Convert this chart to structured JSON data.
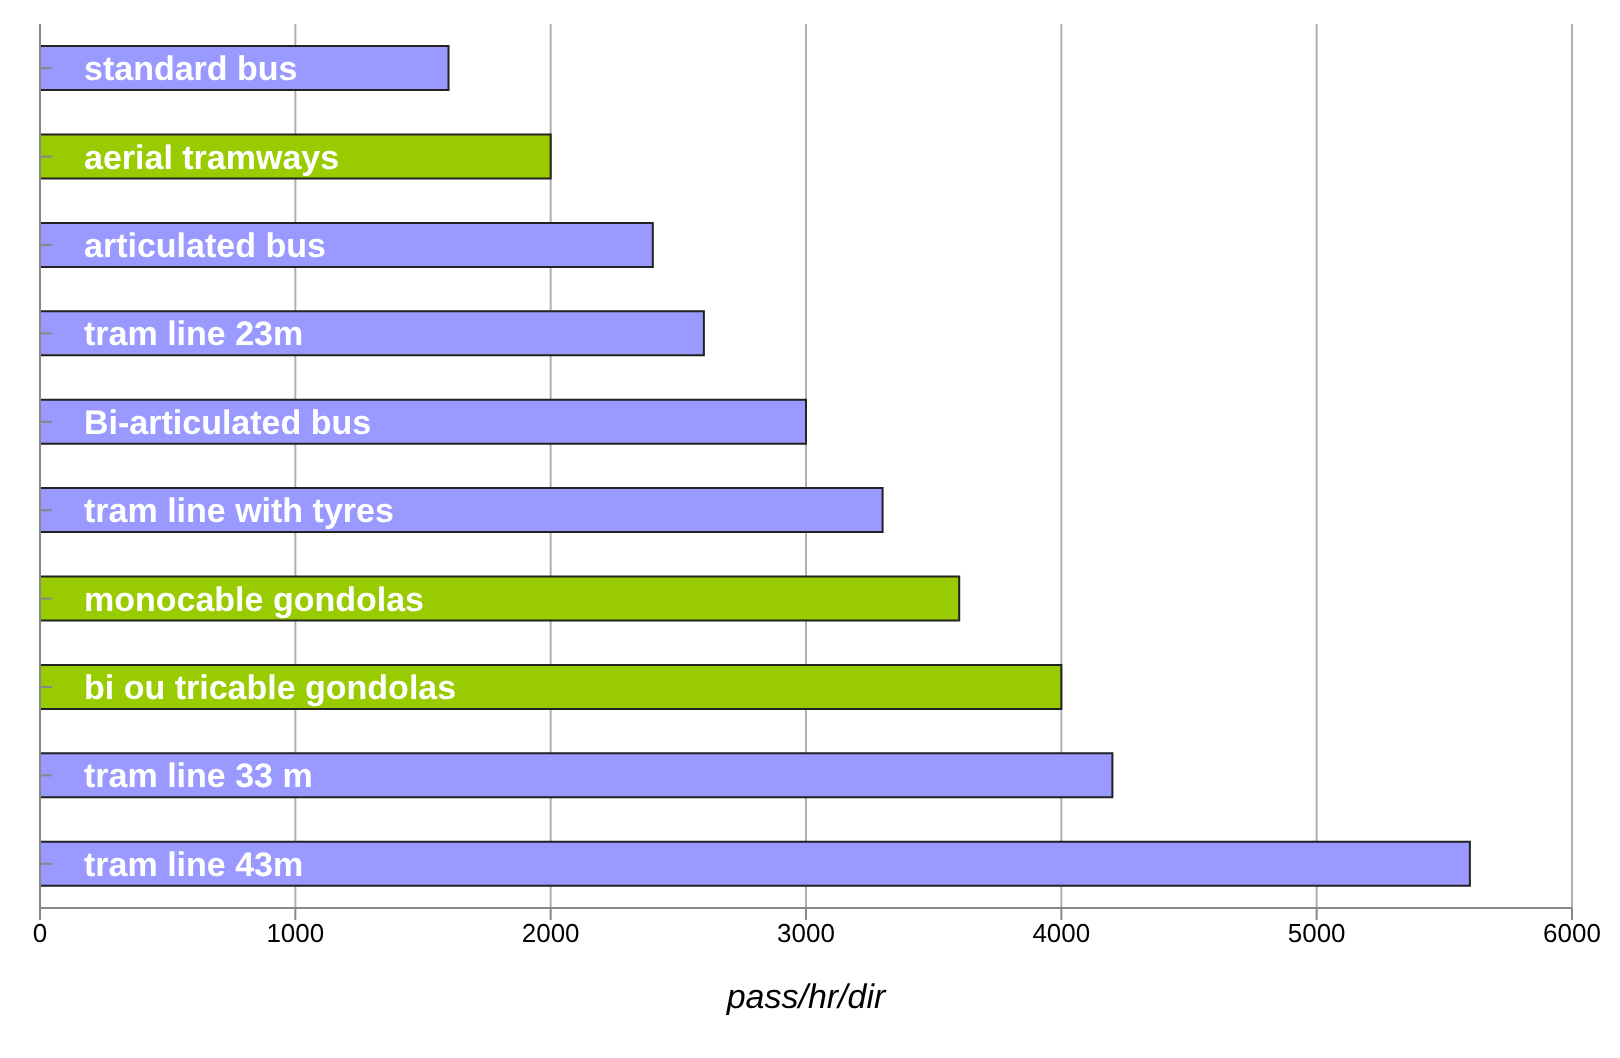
{
  "chart_data": {
    "type": "bar",
    "orientation": "horizontal",
    "xlabel": "pass/hr/dir",
    "categories": [
      "standard bus",
      "aerial tramways",
      "articulated bus",
      "tram line 23m",
      "Bi-articulated bus",
      "tram line with tyres",
      "monocable gondolas",
      "bi ou tricable gondolas",
      "tram line 33 m",
      "tram line 43m"
    ],
    "values": [
      1600,
      2000,
      2400,
      2600,
      3000,
      3300,
      3600,
      4000,
      4200,
      5600
    ],
    "colors": [
      "#9999ff",
      "#99cc00",
      "#9999ff",
      "#9999ff",
      "#9999ff",
      "#9999ff",
      "#99cc00",
      "#99cc00",
      "#9999ff",
      "#9999ff"
    ],
    "xlim": [
      0,
      6000
    ],
    "xticks": [
      0,
      1000,
      2000,
      3000,
      4000,
      5000,
      6000
    ],
    "grid": "x"
  }
}
